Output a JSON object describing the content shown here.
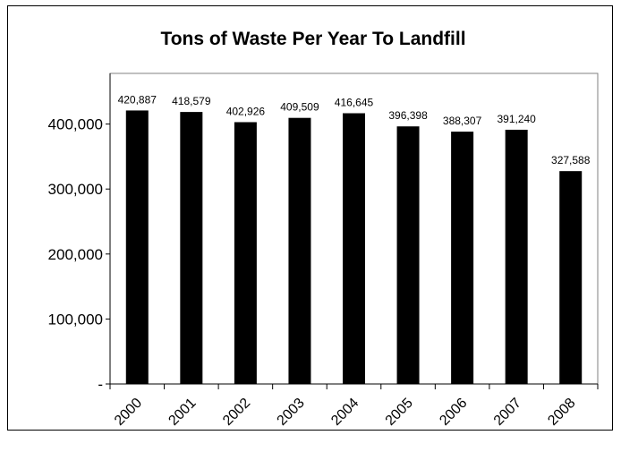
{
  "chart_data": {
    "type": "bar",
    "title": "Tons of Waste Per Year To Landfill",
    "xlabel": "",
    "ylabel": "",
    "categories": [
      "2000",
      "2001",
      "2002",
      "2003",
      "2004",
      "2005",
      "2006",
      "2007",
      "2008"
    ],
    "values": [
      420887,
      418579,
      402926,
      409509,
      416645,
      396398,
      388307,
      391240,
      327588
    ],
    "data_labels": [
      "420,887",
      "418,579",
      "402,926",
      "409,509",
      "416,645",
      "396,398",
      "388,307",
      "391,240",
      "327,588"
    ],
    "yticks": [
      0,
      100000,
      200000,
      300000,
      400000
    ],
    "ytick_labels": [
      "-",
      "100,000",
      "200,000",
      "300,000",
      "400,000"
    ],
    "ylim": [
      0,
      500000
    ],
    "grid": false,
    "legend": "none",
    "bar_color": "#000000"
  }
}
